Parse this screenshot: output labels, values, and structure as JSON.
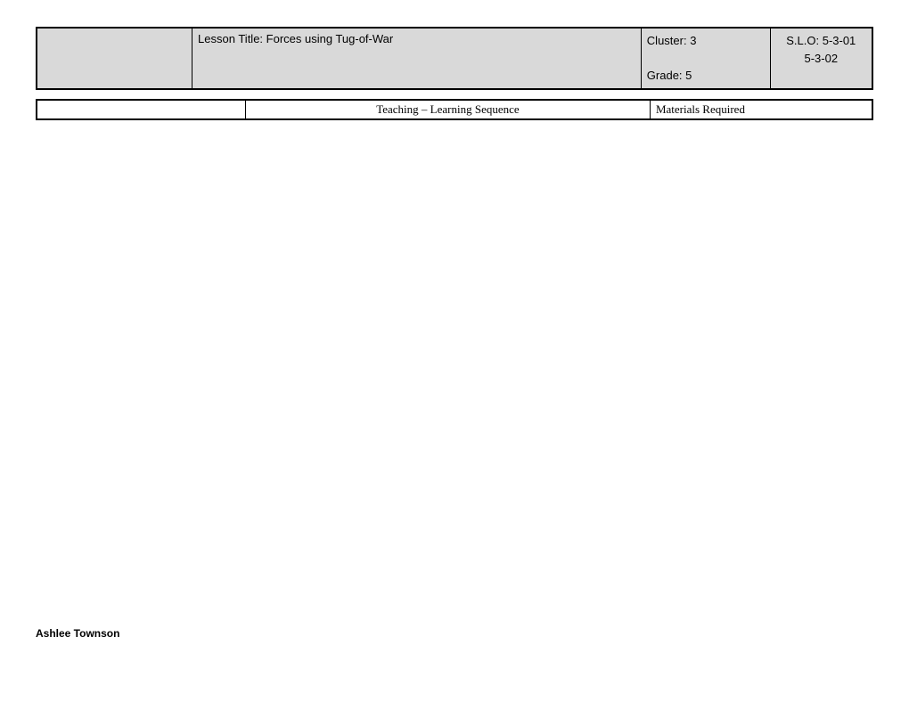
{
  "header": {
    "lesson_title": "Lesson Title:  Forces using Tug-of-War",
    "cluster": "Cluster:  3",
    "grade": "Grade: 5",
    "slo_line1": "S.L.O: 5-3-01",
    "slo_line2": "5-3-02"
  },
  "subheader": {
    "col1": "",
    "col2": "Teaching – Learning Sequence",
    "col3": "Materials Required"
  },
  "footer": {
    "author": "Ashlee Townson"
  },
  "colors": {
    "header_bg": "#d9d9d9",
    "border": "#000000",
    "page_bg": "#ffffff"
  }
}
